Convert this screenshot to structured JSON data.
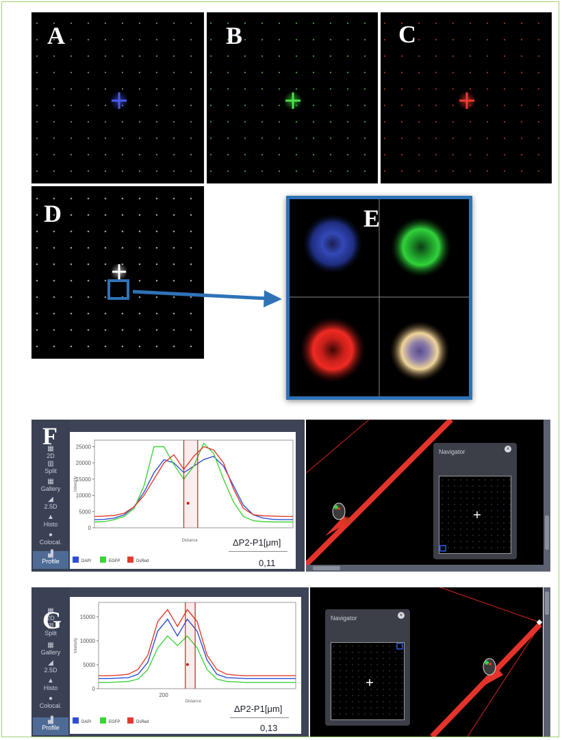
{
  "panels": {
    "A": "A",
    "B": "B",
    "C": "C",
    "D": "D",
    "E": "E",
    "F": "F",
    "G": "G"
  },
  "colors": {
    "frame_border": "#9ccf6f",
    "inset_border": "#2f73b7",
    "dapi": "#2e4fd1",
    "egfp": "#3fd23a",
    "dsred": "#e43a2d",
    "ui_bg": "#3d4457"
  },
  "sidebar": {
    "items": [
      {
        "label": "2D",
        "icon": "2d-icon"
      },
      {
        "label": "Split",
        "icon": "split-icon"
      },
      {
        "label": "Gallery",
        "icon": "gallery-icon"
      },
      {
        "label": "2.5D",
        "icon": "2-5d-icon"
      },
      {
        "label": "Histo",
        "icon": "histogram-icon"
      },
      {
        "label": "Colocal.",
        "icon": "colocalization-icon"
      },
      {
        "label": "Profile",
        "icon": "profile-icon"
      }
    ]
  },
  "panel_f": {
    "ylabel": "Intensity",
    "xlabel": "Distance",
    "yticks": [
      "25000",
      "20000",
      "15000",
      "10000",
      "5000",
      "0"
    ],
    "legend": [
      "DAPI",
      "EGFP",
      "DsRed"
    ],
    "delta_label": "ΔP2-P1[μm]",
    "delta_value": "0,11",
    "navigator_title": "Navigator"
  },
  "panel_g": {
    "ylabel": "Intensity",
    "xlabel": "Distance",
    "yticks": [
      "15000",
      "10000",
      "5000",
      "0"
    ],
    "xtick": "200",
    "legend": [
      "DAPI",
      "EGFP",
      "DsRed"
    ],
    "delta_label": "ΔP2-P1[μm]",
    "delta_value": "0,13",
    "navigator_title": "Navigator"
  },
  "chart_data": [
    {
      "type": "line",
      "ylabel": "Intensity",
      "xlabel": "Distance",
      "ylim": [
        0,
        27000
      ],
      "x": [
        0,
        1,
        2,
        3,
        4,
        5,
        6,
        7,
        8,
        9,
        10,
        11,
        12,
        13,
        14,
        15,
        16,
        17,
        18,
        19,
        20
      ],
      "series": [
        {
          "name": "DAPI",
          "values": [
            2500,
            2600,
            3000,
            4000,
            6500,
            11000,
            17000,
            21000,
            20000,
            17000,
            19000,
            21000,
            22000,
            19000,
            13000,
            7000,
            4000,
            3000,
            2600,
            2500,
            2500
          ]
        },
        {
          "name": "EGFP",
          "values": [
            1800,
            1900,
            2500,
            3500,
            6000,
            13000,
            25000,
            25000,
            19500,
            15000,
            19000,
            26000,
            23000,
            15000,
            8000,
            3500,
            2200,
            1900,
            1800,
            1800,
            1800
          ]
        },
        {
          "name": "DsRed",
          "values": [
            3500,
            3600,
            3800,
            4500,
            6500,
            10000,
            15000,
            20000,
            22500,
            18000,
            22000,
            25000,
            24000,
            20000,
            12000,
            6000,
            4000,
            3700,
            3600,
            3500,
            3500
          ]
        }
      ]
    },
    {
      "type": "line",
      "ylabel": "Intensity",
      "xlabel": "Distance",
      "ylim": [
        0,
        18000
      ],
      "x": [
        0,
        1,
        2,
        3,
        4,
        5,
        6,
        7,
        8,
        9,
        10,
        11,
        12,
        13,
        14,
        15,
        16,
        17,
        18,
        19,
        20
      ],
      "series": [
        {
          "name": "DAPI",
          "values": [
            2100,
            2100,
            2200,
            2300,
            3000,
            5500,
            12000,
            14500,
            11000,
            14500,
            12000,
            6000,
            3000,
            2300,
            2200,
            2100,
            2100,
            2100,
            2100,
            2100,
            2100
          ]
        },
        {
          "name": "EGFP",
          "values": [
            1300,
            1300,
            1400,
            1500,
            2000,
            4000,
            8500,
            11000,
            9000,
            11000,
            8500,
            4000,
            2000,
            1500,
            1400,
            1300,
            1300,
            1300,
            1300,
            1300,
            1300
          ]
        },
        {
          "name": "DsRed",
          "values": [
            2700,
            2700,
            2800,
            3000,
            4000,
            7000,
            14000,
            16500,
            13000,
            16500,
            14000,
            7000,
            4000,
            3000,
            2800,
            2700,
            2700,
            2700,
            2700,
            2700,
            2700
          ]
        }
      ]
    }
  ]
}
